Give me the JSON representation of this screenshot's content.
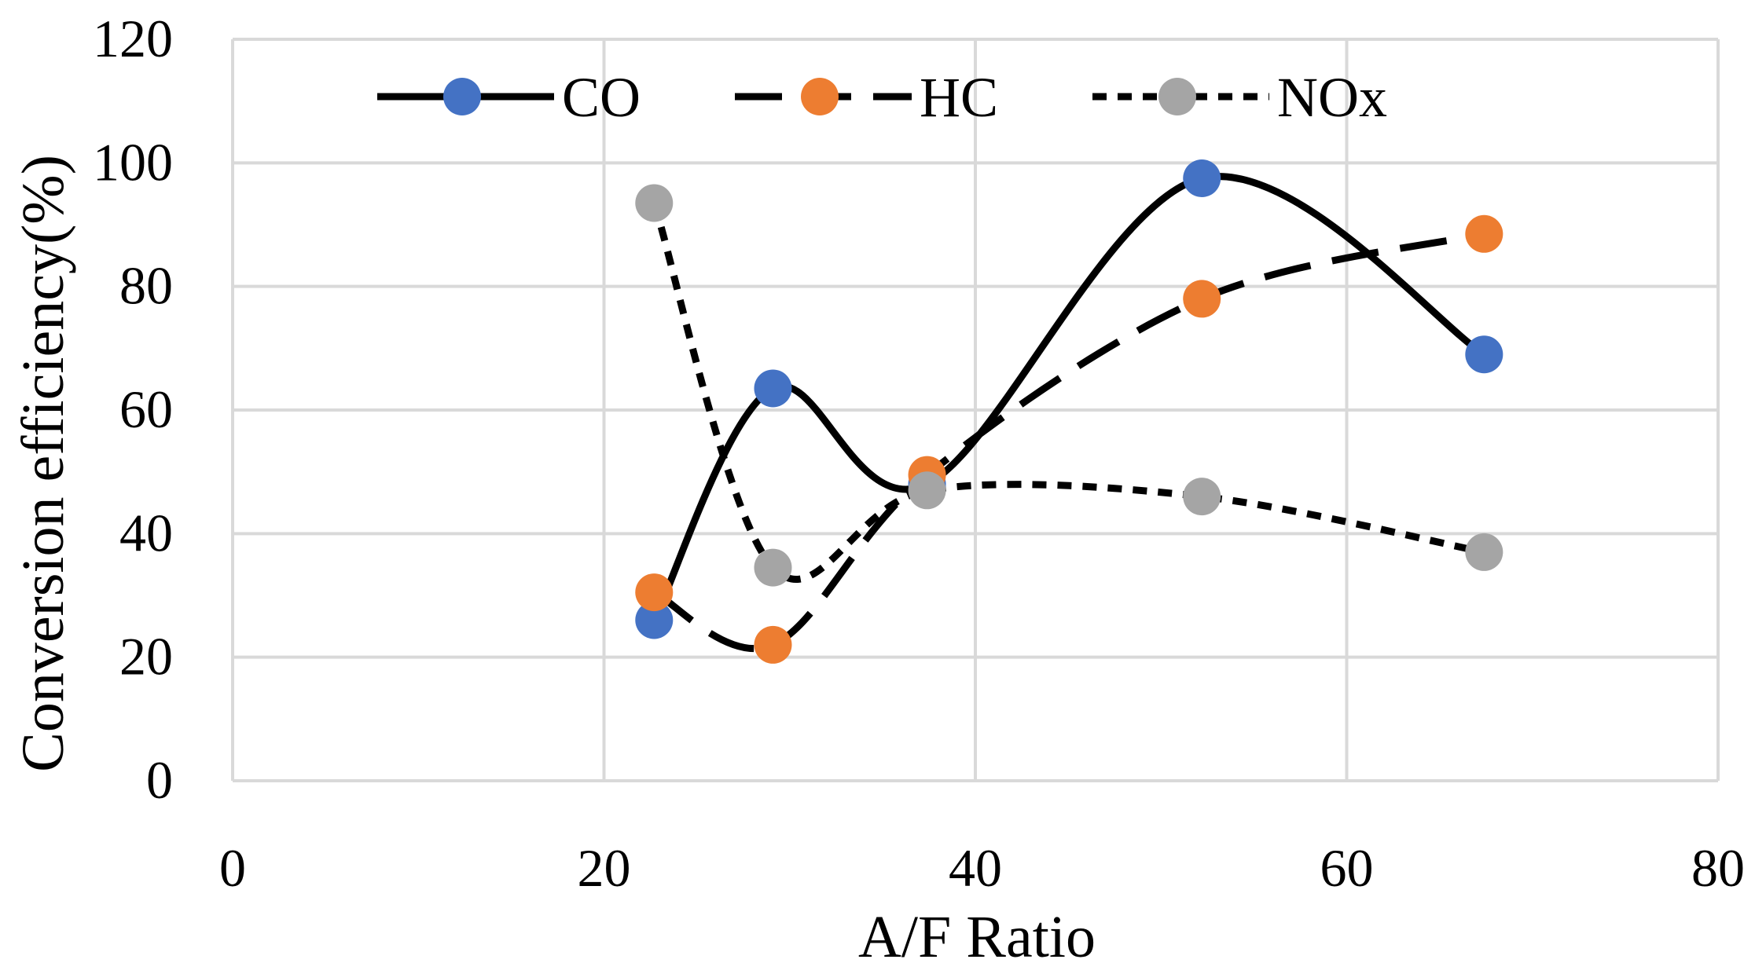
{
  "chart_data": {
    "type": "scatter",
    "title": "",
    "xlabel": "A/F Ratio",
    "ylabel": "Conversion efficiency(%)",
    "xlim": [
      0,
      80
    ],
    "ylim": [
      0,
      120
    ],
    "xticks": [
      0,
      20,
      40,
      60,
      80
    ],
    "yticks": [
      0,
      20,
      40,
      60,
      80,
      100,
      120
    ],
    "grid": true,
    "legend_position": "top",
    "series": [
      {
        "name": "CO",
        "color": "#4472C4",
        "line": "solid",
        "x": [
          22.7,
          29.1,
          37.4,
          52.2,
          67.4
        ],
        "y": [
          26.0,
          63.5,
          48.0,
          97.5,
          69.0
        ]
      },
      {
        "name": "HC",
        "color": "#ED7D31",
        "line": "longdash",
        "x": [
          22.7,
          29.1,
          37.4,
          52.2,
          67.4
        ],
        "y": [
          30.5,
          22.0,
          49.5,
          78.0,
          88.5
        ]
      },
      {
        "name": "NOx",
        "color": "#A5A5A5",
        "line": "dashed",
        "x": [
          22.7,
          29.1,
          37.4,
          52.2,
          67.4
        ],
        "y": [
          93.5,
          34.5,
          47.0,
          46.0,
          37.0
        ]
      }
    ]
  }
}
